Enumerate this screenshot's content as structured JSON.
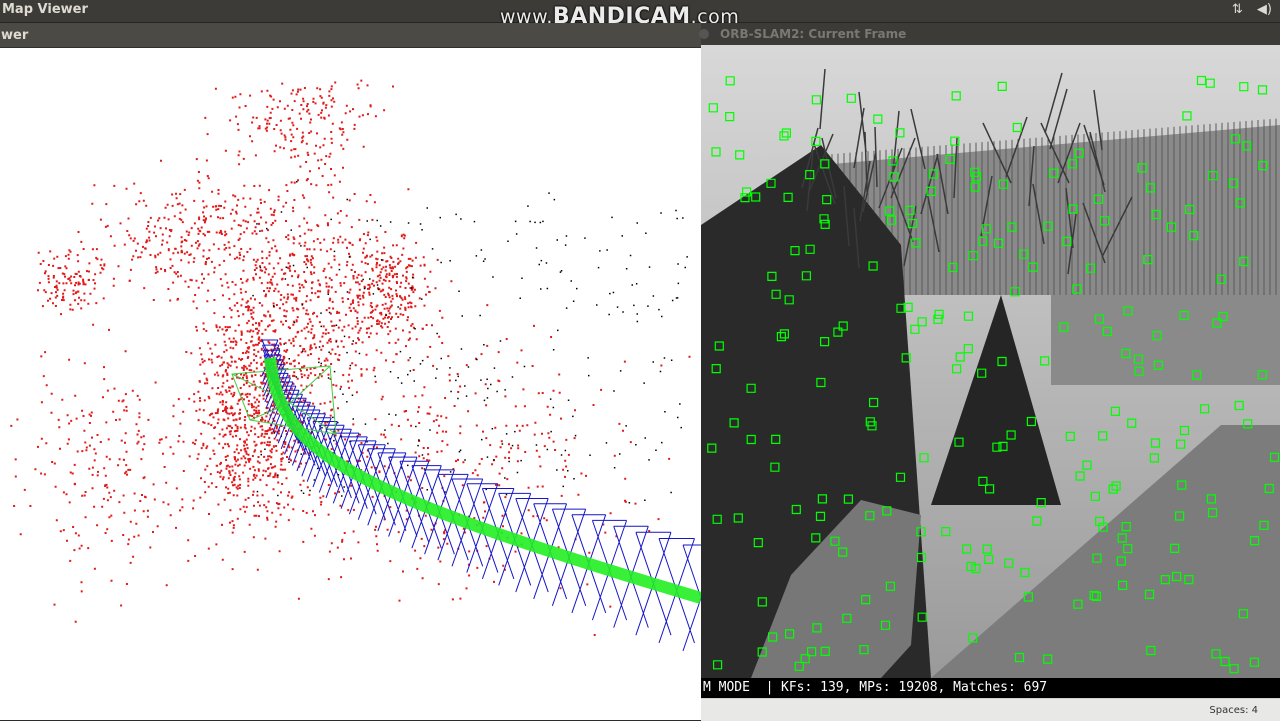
{
  "topbar": {
    "title": "Map Viewer",
    "indicators": [
      "⇅",
      "🔊"
    ]
  },
  "watermark": {
    "prefix": "www.",
    "brand": "BANDICAM",
    "suffix": ".com"
  },
  "map_viewer": {
    "header_label": "wer",
    "colors": {
      "map_points": "#e11b1b",
      "reference_points": "#000000",
      "keyframes": "#1616c8",
      "covisibility_graph": "#22ee22",
      "current_camera": "#44cc44"
    }
  },
  "current_frame": {
    "title": "ORB-SLAM2: Current Frame",
    "feature_color": "#00ff00",
    "status": {
      "mode": "M MODE  |",
      "stats": "KFs: 139, MPs: 19208, Matches: 697"
    }
  },
  "bottombar": {
    "spaces": "Spaces: 4"
  }
}
